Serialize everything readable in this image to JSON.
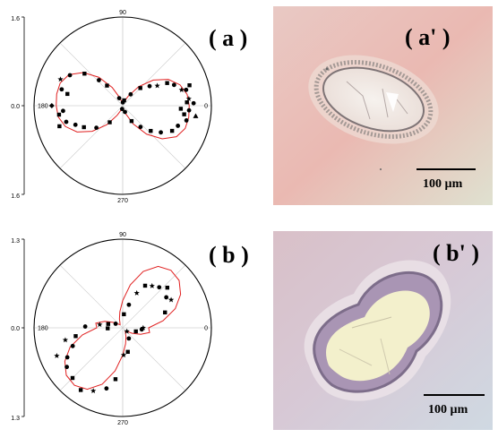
{
  "chart_data": [
    {
      "type": "scatter",
      "projection": "polar",
      "panel_label": "( a )",
      "radial_tick_label": "1.6",
      "center_label": "0.0",
      "angle_labels": {
        "a0": "0",
        "a90": "90",
        "a180": "180",
        "a270": "270"
      },
      "rlim": [
        0,
        1.6
      ],
      "grid": true,
      "fit": {
        "color": "#e02020",
        "theta": [
          0,
          10,
          20,
          30,
          40,
          50,
          60,
          70,
          80,
          90,
          100,
          110,
          120,
          130,
          140,
          150,
          160,
          170,
          180,
          190,
          200,
          210,
          220,
          230,
          240,
          250,
          260,
          270,
          280,
          290,
          300,
          310,
          320,
          330,
          340,
          350
        ],
        "r": [
          1.2,
          1.18,
          1.1,
          0.95,
          0.72,
          0.45,
          0.2,
          0.08,
          0.04,
          0.04,
          0.06,
          0.15,
          0.38,
          0.67,
          0.93,
          1.12,
          1.2,
          1.21,
          1.2,
          1.18,
          1.1,
          0.95,
          0.72,
          0.45,
          0.2,
          0.08,
          0.04,
          0.04,
          0.06,
          0.15,
          0.38,
          0.67,
          0.93,
          1.12,
          1.2,
          1.21
        ]
      },
      "points": [
        {
          "theta": 2,
          "r": 1.28,
          "m": "circle"
        },
        {
          "theta": 3,
          "r": 1.16,
          "m": "square"
        },
        {
          "theta": 6,
          "r": 1.2,
          "m": "star"
        },
        {
          "theta": -4,
          "r": 1.2,
          "m": "circle"
        },
        {
          "theta": -8,
          "r": 1.33,
          "m": "triangle"
        },
        {
          "theta": -3,
          "r": 1.05,
          "m": "square"
        },
        {
          "theta": 14,
          "r": 1.18,
          "m": "circle"
        },
        {
          "theta": 15,
          "r": 1.1,
          "m": "star"
        },
        {
          "theta": 17,
          "r": 1.26,
          "m": "square"
        },
        {
          "theta": 22,
          "r": 1.0,
          "m": "circle"
        },
        {
          "theta": 27,
          "r": 0.9,
          "m": "square"
        },
        {
          "theta": 30,
          "r": 0.72,
          "m": "star"
        },
        {
          "theta": 36,
          "r": 0.6,
          "m": "circle"
        },
        {
          "theta": 45,
          "r": 0.45,
          "m": "square"
        },
        {
          "theta": 55,
          "r": 0.25,
          "m": "circle"
        },
        {
          "theta": 75,
          "r": 0.1,
          "m": "square"
        },
        {
          "theta": 88,
          "r": 0.06,
          "m": "circle"
        },
        {
          "theta": 115,
          "r": 0.15,
          "m": "circle"
        },
        {
          "theta": 128,
          "r": 0.46,
          "m": "square"
        },
        {
          "theta": 133,
          "r": 0.63,
          "m": "circle"
        },
        {
          "theta": 140,
          "r": 0.9,
          "m": "square"
        },
        {
          "theta": 150,
          "r": 1.1,
          "m": "circle"
        },
        {
          "theta": 157,
          "r": 1.22,
          "m": "star"
        },
        {
          "theta": 165,
          "r": 1.14,
          "m": "circle"
        },
        {
          "theta": 168,
          "r": 1.02,
          "m": "square"
        },
        {
          "theta": 180,
          "r": 1.28,
          "m": "diamond"
        },
        {
          "theta": 185,
          "r": 1.08,
          "m": "circle"
        },
        {
          "theta": 188,
          "r": 1.16,
          "m": "square"
        },
        {
          "theta": 196,
          "r": 1.06,
          "m": "circle"
        },
        {
          "theta": 198,
          "r": 1.2,
          "m": "square"
        },
        {
          "theta": 202,
          "r": 0.92,
          "m": "circle"
        },
        {
          "theta": 209,
          "r": 0.8,
          "m": "square"
        },
        {
          "theta": 220,
          "r": 0.62,
          "m": "circle"
        },
        {
          "theta": 232,
          "r": 0.38,
          "m": "square"
        },
        {
          "theta": 260,
          "r": 0.06,
          "m": "circle"
        },
        {
          "theta": 290,
          "r": 0.12,
          "m": "circle"
        },
        {
          "theta": 300,
          "r": 0.32,
          "m": "square"
        },
        {
          "theta": 310,
          "r": 0.5,
          "m": "circle"
        },
        {
          "theta": 318,
          "r": 0.68,
          "m": "square"
        },
        {
          "theta": 325,
          "r": 0.84,
          "m": "circle"
        },
        {
          "theta": 333,
          "r": 1.0,
          "m": "square"
        },
        {
          "theta": 340,
          "r": 1.06,
          "m": "circle"
        },
        {
          "theta": 347,
          "r": 1.18,
          "m": "circle"
        },
        {
          "theta": 352,
          "r": 1.12,
          "m": "square"
        }
      ]
    },
    {
      "type": "scatter",
      "projection": "polar",
      "panel_label": "( b )",
      "radial_tick_label": "1.3",
      "center_label": "0.0",
      "angle_labels": {
        "a0": "0",
        "a90": "90",
        "a180": "180",
        "a270": "270"
      },
      "rlim": [
        0,
        1.3
      ],
      "grid": true,
      "fit": {
        "color": "#e02020",
        "theta": [
          0,
          10,
          20,
          30,
          40,
          50,
          60,
          70,
          80,
          90,
          100,
          110,
          120,
          130,
          140,
          150,
          160,
          170,
          180,
          190,
          200,
          210,
          220,
          230,
          240,
          250,
          260,
          270,
          280,
          290,
          300,
          310,
          320,
          330,
          340,
          350
        ],
        "r": [
          0.38,
          0.6,
          0.82,
          0.98,
          1.08,
          1.1,
          1.04,
          0.88,
          0.64,
          0.4,
          0.24,
          0.14,
          0.08,
          0.06,
          0.08,
          0.16,
          0.28,
          0.4,
          0.38,
          0.6,
          0.82,
          0.98,
          1.08,
          1.1,
          1.04,
          0.88,
          0.64,
          0.4,
          0.24,
          0.14,
          0.08,
          0.06,
          0.08,
          0.16,
          0.28,
          0.4
        ]
      },
      "points": [
        {
          "theta": 0,
          "r": 0.3,
          "m": "star"
        },
        {
          "theta": 20,
          "r": 0.66,
          "m": "square"
        },
        {
          "theta": 30,
          "r": 0.82,
          "m": "star"
        },
        {
          "theta": 35,
          "r": 0.78,
          "m": "circle"
        },
        {
          "theta": 42,
          "r": 0.88,
          "m": "square"
        },
        {
          "theta": 48,
          "r": 0.8,
          "m": "circle"
        },
        {
          "theta": 55,
          "r": 0.75,
          "m": "star"
        },
        {
          "theta": 62,
          "r": 0.7,
          "m": "square"
        },
        {
          "theta": 68,
          "r": 0.55,
          "m": "star"
        },
        {
          "theta": 75,
          "r": 0.35,
          "m": "circle"
        },
        {
          "theta": 85,
          "r": 0.2,
          "m": "square"
        },
        {
          "theta": 150,
          "r": 0.12,
          "m": "circle"
        },
        {
          "theta": 165,
          "r": 0.22,
          "m": "square"
        },
        {
          "theta": 172,
          "r": 0.34,
          "m": "star"
        },
        {
          "theta": 178,
          "r": 0.55,
          "m": "circle"
        },
        {
          "theta": 182,
          "r": 0.22,
          "m": "square"
        },
        {
          "theta": 190,
          "r": 0.7,
          "m": "square"
        },
        {
          "theta": 192,
          "r": 0.86,
          "m": "star"
        },
        {
          "theta": 200,
          "r": 0.78,
          "m": "circle"
        },
        {
          "theta": 203,
          "r": 1.05,
          "m": "star"
        },
        {
          "theta": 208,
          "r": 0.92,
          "m": "circle"
        },
        {
          "theta": 215,
          "r": 1.0,
          "m": "circle"
        },
        {
          "theta": 225,
          "r": 1.04,
          "m": "square"
        },
        {
          "theta": 236,
          "r": 1.1,
          "m": "square"
        },
        {
          "theta": 245,
          "r": 1.02,
          "m": "star"
        },
        {
          "theta": 255,
          "r": 0.92,
          "m": "circle"
        },
        {
          "theta": 262,
          "r": 0.76,
          "m": "square"
        },
        {
          "theta": 272,
          "r": 0.4,
          "m": "star"
        },
        {
          "theta": 282,
          "r": 0.36,
          "m": "square"
        },
        {
          "theta": 300,
          "r": 0.18,
          "m": "circle"
        },
        {
          "theta": 320,
          "r": 0.08,
          "m": "star"
        },
        {
          "theta": 345,
          "r": 0.2,
          "m": "square"
        },
        {
          "theta": 355,
          "r": 0.28,
          "m": "circle"
        }
      ]
    }
  ],
  "micrographs": [
    {
      "panel_label": "( a' )",
      "scale_label": "100 µm"
    },
    {
      "panel_label": "( b' )",
      "scale_label": "100 µm"
    }
  ]
}
